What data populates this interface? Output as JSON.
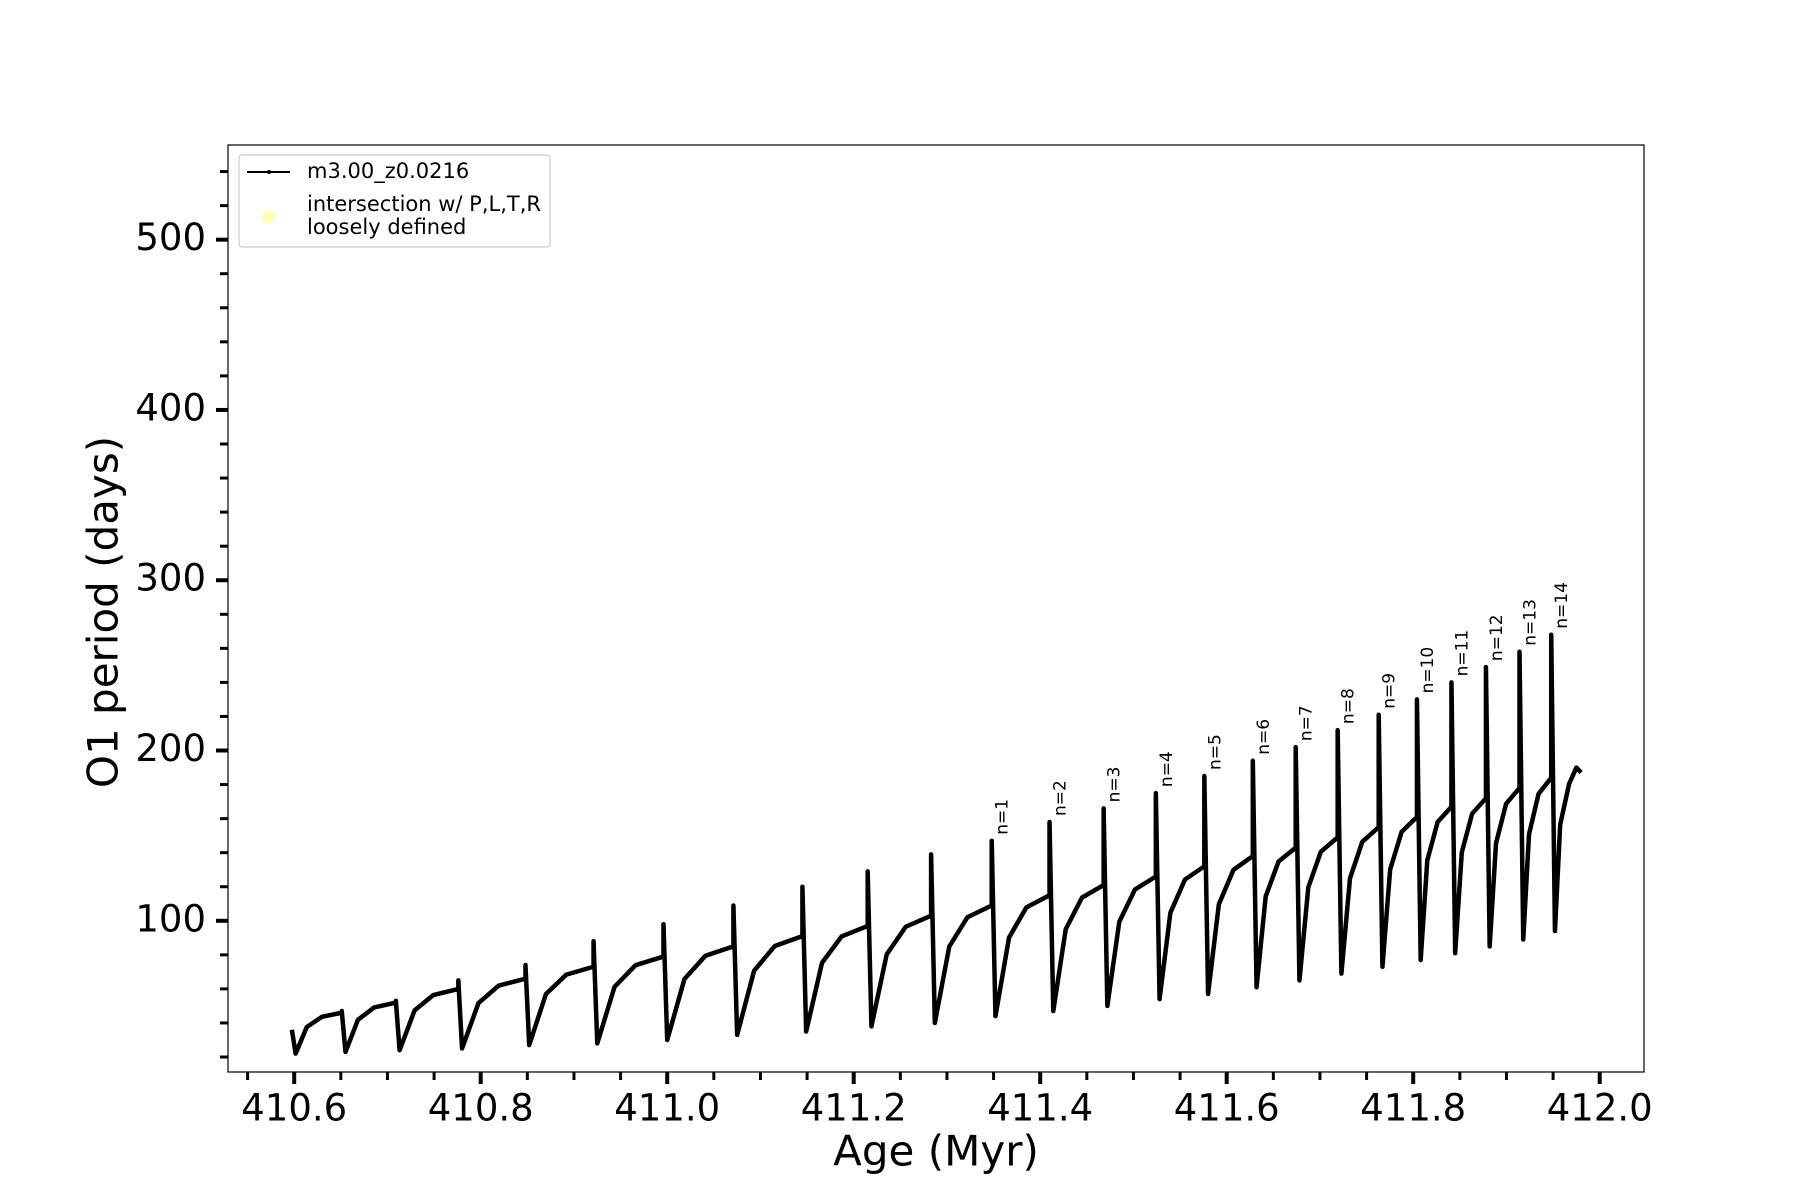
{
  "chart_data": {
    "type": "line",
    "xlabel": "Age (Myr)",
    "ylabel": "O1 period (days)",
    "xlim": [
      410.529,
      412.0475
    ],
    "ylim": [
      11.2,
      555.6
    ],
    "xticks": [
      410.6,
      410.8,
      {
        "value": 411,
        "label": "411.0"
      },
      411.2,
      411.4,
      411.6,
      411.8,
      {
        "value": 412,
        "label": "412.0"
      }
    ],
    "xminorticks": [
      410.55,
      410.65,
      410.7,
      410.75,
      410.85,
      410.9,
      410.95,
      411.05,
      411.1,
      411.15,
      411.25,
      411.3,
      411.35,
      411.45,
      411.5,
      411.55,
      411.65,
      411.7,
      411.75,
      411.85,
      411.9,
      411.95
    ],
    "yticks": [
      100,
      200,
      300,
      400,
      500
    ],
    "yminorticks": [
      20,
      40,
      60,
      80,
      120,
      140,
      160,
      180,
      220,
      240,
      260,
      280,
      320,
      340,
      360,
      380,
      420,
      440,
      460,
      480,
      520,
      540
    ],
    "legend": "upper left",
    "series": [
      {
        "name": "m3.00_z0.0216",
        "color": "#000000",
        "x": [
          410.5975,
          410.6015,
          410.6135,
          410.6296,
          410.651,
          410.651,
          410.655,
          410.6684,
          410.6858,
          410.709,
          410.709,
          410.713,
          410.7291,
          410.7492,
          410.776,
          410.776,
          410.78,
          410.7976,
          410.8192,
          410.848,
          410.848,
          410.852,
          410.8699,
          410.8918,
          410.921,
          410.921,
          410.925,
          410.9435,
          410.966,
          410.996,
          410.996,
          411.0,
          411.0185,
          411.041,
          411.071,
          411.071,
          411.075,
          411.0932,
          411.1154,
          411.145,
          411.145,
          411.149,
          411.166,
          411.187,
          411.215,
          411.215,
          411.219,
          411.2354,
          411.2558,
          411.283,
          411.283,
          411.287,
          411.3025,
          411.322,
          411.348,
          411.348,
          411.352,
          411.3666,
          411.3852,
          411.41,
          411.41,
          411.414,
          411.4274,
          411.4448,
          411.468,
          411.468,
          411.472,
          411.4848,
          411.5016,
          411.524,
          411.524,
          411.528,
          411.5396,
          411.5552,
          411.576,
          411.576,
          411.58,
          411.5916,
          411.6072,
          411.628,
          411.628,
          411.632,
          411.6418,
          411.6556,
          411.674,
          411.674,
          411.678,
          411.6875,
          411.701,
          411.719,
          411.719,
          411.723,
          411.7322,
          411.7454,
          411.763,
          411.763,
          411.767,
          411.7753,
          411.7876,
          411.804,
          411.804,
          411.808,
          411.8151,
          411.8262,
          411.841,
          411.841,
          411.845,
          411.8521,
          411.8632,
          411.878,
          411.878,
          411.882,
          411.8888,
          411.8996,
          411.914,
          411.914,
          411.918,
          411.9242,
          411.9344,
          411.948,
          411.948,
          411.952,
          411.9576,
          411.9672,
          411.975,
          411.98
        ],
        "values": [
          36,
          22,
          37.6,
          43.6,
          46,
          47,
          23,
          41.9,
          49.1,
          52,
          53,
          24,
          47.4,
          56.4,
          60,
          65,
          25,
          51.7,
          61.9,
          66,
          74,
          27,
          56.9,
          68.4,
          73,
          88,
          28,
          61.2,
          73.9,
          79,
          98,
          30,
          65.8,
          79.5,
          85,
          109,
          33,
          70.7,
          85.2,
          91,
          120,
          35,
          75.3,
          90.8,
          97,
          129,
          38,
          80.3,
          96.5,
          103,
          139,
          40,
          84.9,
          102.1,
          109,
          147,
          44,
          90.2,
          107.9,
          115,
          158,
          47,
          95.1,
          113.6,
          121,
          166,
          50,
          99.4,
          118.4,
          126,
          175,
          54,
          104.7,
          124.2,
          132,
          185,
          57,
          109.7,
          129.9,
          138,
          194,
          61,
          114.3,
          134.8,
          143,
          202,
          65,
          119.6,
          140.6,
          149,
          212,
          69,
          124.9,
          146.4,
          155,
          221,
          73,
          130.2,
          152.2,
          161,
          230,
          77,
          135.5,
          158,
          167,
          240,
          81,
          140.2,
          162.9,
          172,
          249,
          85,
          145.5,
          168.7,
          178,
          258,
          89,
          150.8,
          174.5,
          184,
          268,
          94,
          156.4,
          180.4,
          190,
          187
        ]
      },
      {
        "name": "intersection w/ P,L,T,R\nloosely defined",
        "color": "#ffffb3",
        "x": [],
        "values": []
      }
    ],
    "annotations": [
      {
        "text": "n=1",
        "x": 411.348,
        "y": 147
      },
      {
        "text": "n=2",
        "x": 411.41,
        "y": 158
      },
      {
        "text": "n=3",
        "x": 411.468,
        "y": 166
      },
      {
        "text": "n=4",
        "x": 411.524,
        "y": 175
      },
      {
        "text": "n=5",
        "x": 411.576,
        "y": 185
      },
      {
        "text": "n=6",
        "x": 411.628,
        "y": 194
      },
      {
        "text": "n=7",
        "x": 411.674,
        "y": 202
      },
      {
        "text": "n=8",
        "x": 411.719,
        "y": 212
      },
      {
        "text": "n=9",
        "x": 411.763,
        "y": 221
      },
      {
        "text": "n=10",
        "x": 411.804,
        "y": 230
      },
      {
        "text": "n=11",
        "x": 411.841,
        "y": 240
      },
      {
        "text": "n=12",
        "x": 411.878,
        "y": 249
      },
      {
        "text": "n=13",
        "x": 411.914,
        "y": 258
      },
      {
        "text": "n=14",
        "x": 411.948,
        "y": 268
      }
    ]
  }
}
